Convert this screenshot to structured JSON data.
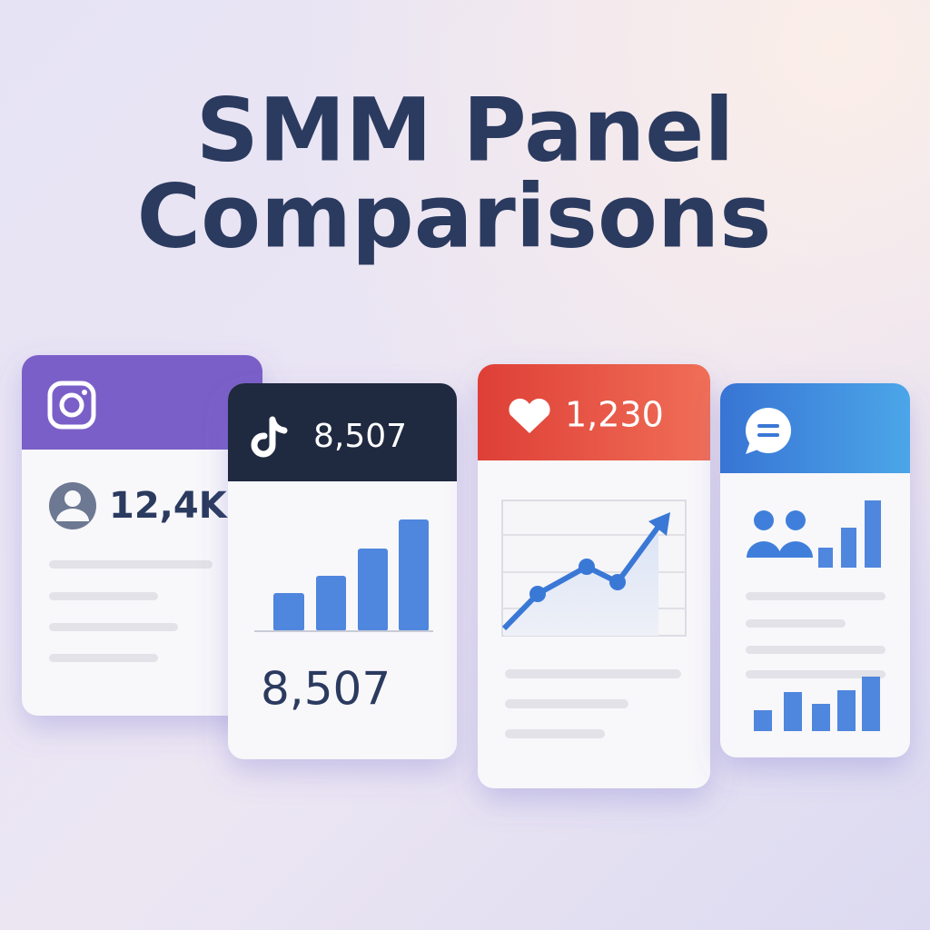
{
  "title": {
    "lines": [
      "SMM Panel",
      "Comparisons"
    ]
  },
  "cards": [
    {
      "stat": "12,4K"
    },
    {
      "header_stat": "8,507",
      "stat": "8,507"
    },
    {
      "header_stat": "1,230"
    }
  ]
}
